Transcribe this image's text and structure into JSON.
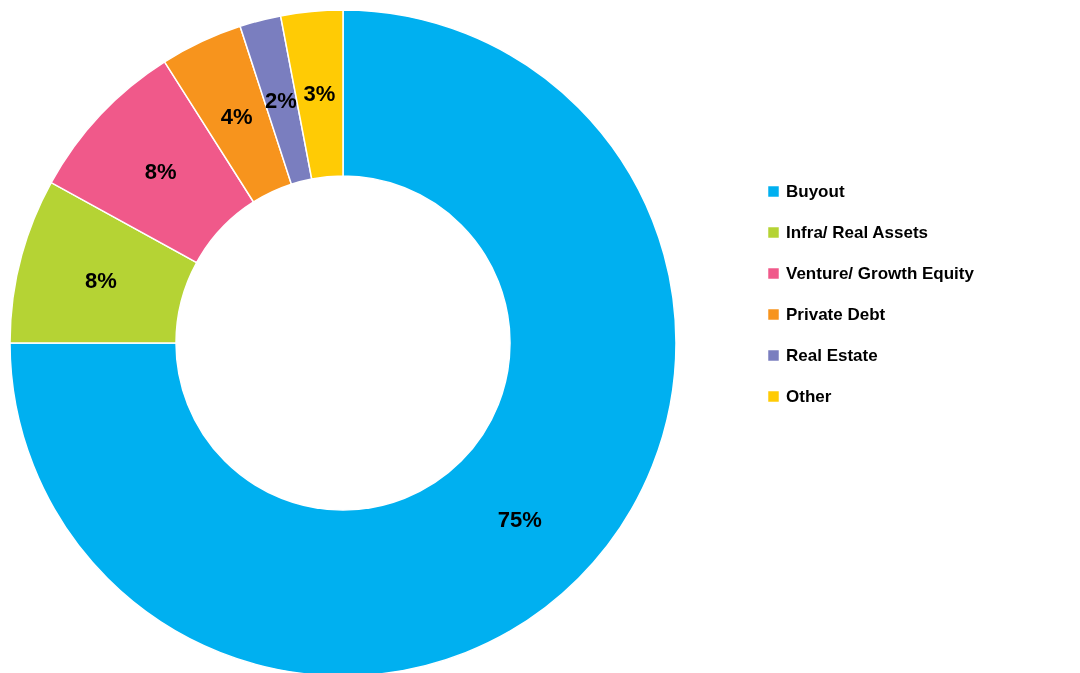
{
  "chart_data": {
    "type": "donut",
    "categories": [
      "Buyout",
      "Infra/ Real Assets",
      "Venture/ Growth Equity",
      "Private Debt",
      "Real Estate",
      "Other"
    ],
    "values": [
      75,
      8,
      8,
      4,
      2,
      3
    ],
    "colors": [
      "#00b0f0",
      "#b5d334",
      "#f0598a",
      "#f7941d",
      "#7a7ebf",
      "#ffcb05"
    ],
    "value_labels": [
      "75%",
      "8%",
      "8%",
      "4%",
      "2%",
      "3%"
    ],
    "legend": "right"
  }
}
